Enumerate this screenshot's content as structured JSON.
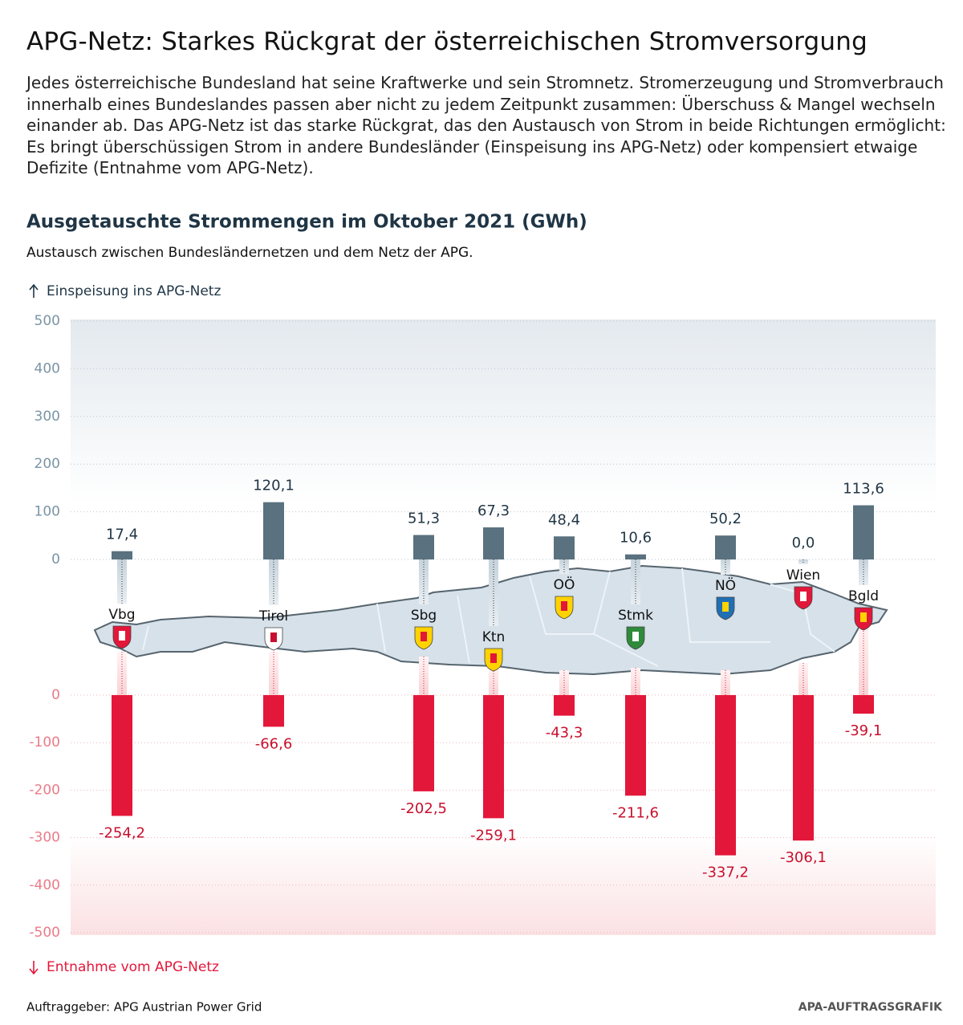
{
  "header": {
    "title": "APG-Netz: Starkes Rückgrat der österreichischen Stromversorgung",
    "description": "Jedes österreichische Bundesland hat seine Kraftwerke und sein Stromnetz. Stromerzeugung und Stromverbrauch innerhalb eines Bundeslandes passen aber nicht zu jedem Zeitpunkt zusammen: Überschuss & Mangel wechseln einander ab. Das APG-Netz ist das starke Rückgrat, das den Austausch von Strom in beide Richtungen ermöglicht: Es bringt überschüssigen Strom in andere Bundesländer (Einspeisung ins APG-Netz) oder kompensiert etwaige Defizite (Entnahme vom APG-Netz)."
  },
  "chart_data": {
    "type": "bar",
    "title": "Ausgetauschte Strommengen im Oktober 2021 (GWh)",
    "subtitle": "Austausch zwischen Bundesländernetzen und dem Netz der APG.",
    "categories": [
      "Vbg",
      "Tirol",
      "Sbg",
      "Ktn",
      "OÖ",
      "Stmk",
      "NÖ",
      "Wien",
      "Bgld"
    ],
    "series": [
      {
        "name": "Einspeisung ins APG-Netz",
        "color": "#5a717f",
        "axis": "y",
        "values": [
          17.4,
          120.1,
          51.3,
          67.3,
          48.4,
          10.6,
          50.2,
          0.0,
          113.6
        ],
        "value_labels": [
          "17,4",
          "120,1",
          "51,3",
          "67,3",
          "48,4",
          "10,6",
          "50,2",
          "0,0",
          "113,6"
        ]
      },
      {
        "name": "Entnahme vom APG-Netz",
        "color": "#e3173a",
        "axis": "y2",
        "values": [
          -254.2,
          -66.6,
          -202.5,
          -259.1,
          -43.3,
          -211.6,
          -337.2,
          -306.1,
          -39.1
        ],
        "value_labels": [
          "-254,2",
          "-66,6",
          "-202,5",
          "-259,1",
          "-43,3",
          "-211,6",
          "-337,2",
          "-306,1",
          "-39,1"
        ]
      }
    ],
    "ylim": [
      0,
      500
    ],
    "yticks": [
      0,
      100,
      200,
      300,
      400,
      500
    ],
    "y2lim": [
      -500,
      0
    ],
    "y2ticks": [
      -500,
      -400,
      -300,
      -200,
      -100,
      0
    ],
    "grid": true
  },
  "footer": {
    "source": "Auftraggeber: APG Austrian Power Grid",
    "credit": "APA-AUFTRAGSGRAFIK"
  }
}
